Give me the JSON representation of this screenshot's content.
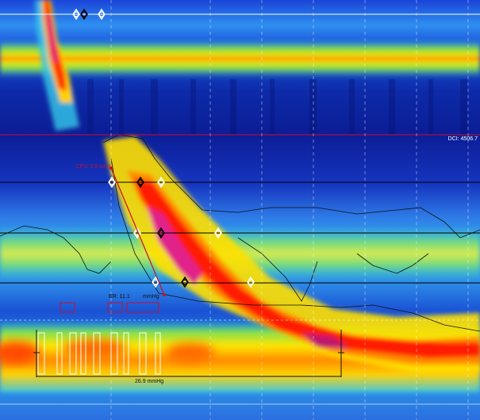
{
  "readouts": {
    "dci": "DCI: 4506.7",
    "cfv": "CFV: 3.5 cm/s",
    "er_prefix": "ER: 11.1",
    "er_unit": "mmHg",
    "distal_latency": "26.9 mmHg"
  },
  "colors": {
    "background": "#0b1d96",
    "isobar_red": "#c8102e",
    "guide_white": "#ffffff",
    "guide_black": "#000000"
  },
  "icons": {
    "marker": "diamond-cursor-icon"
  }
}
